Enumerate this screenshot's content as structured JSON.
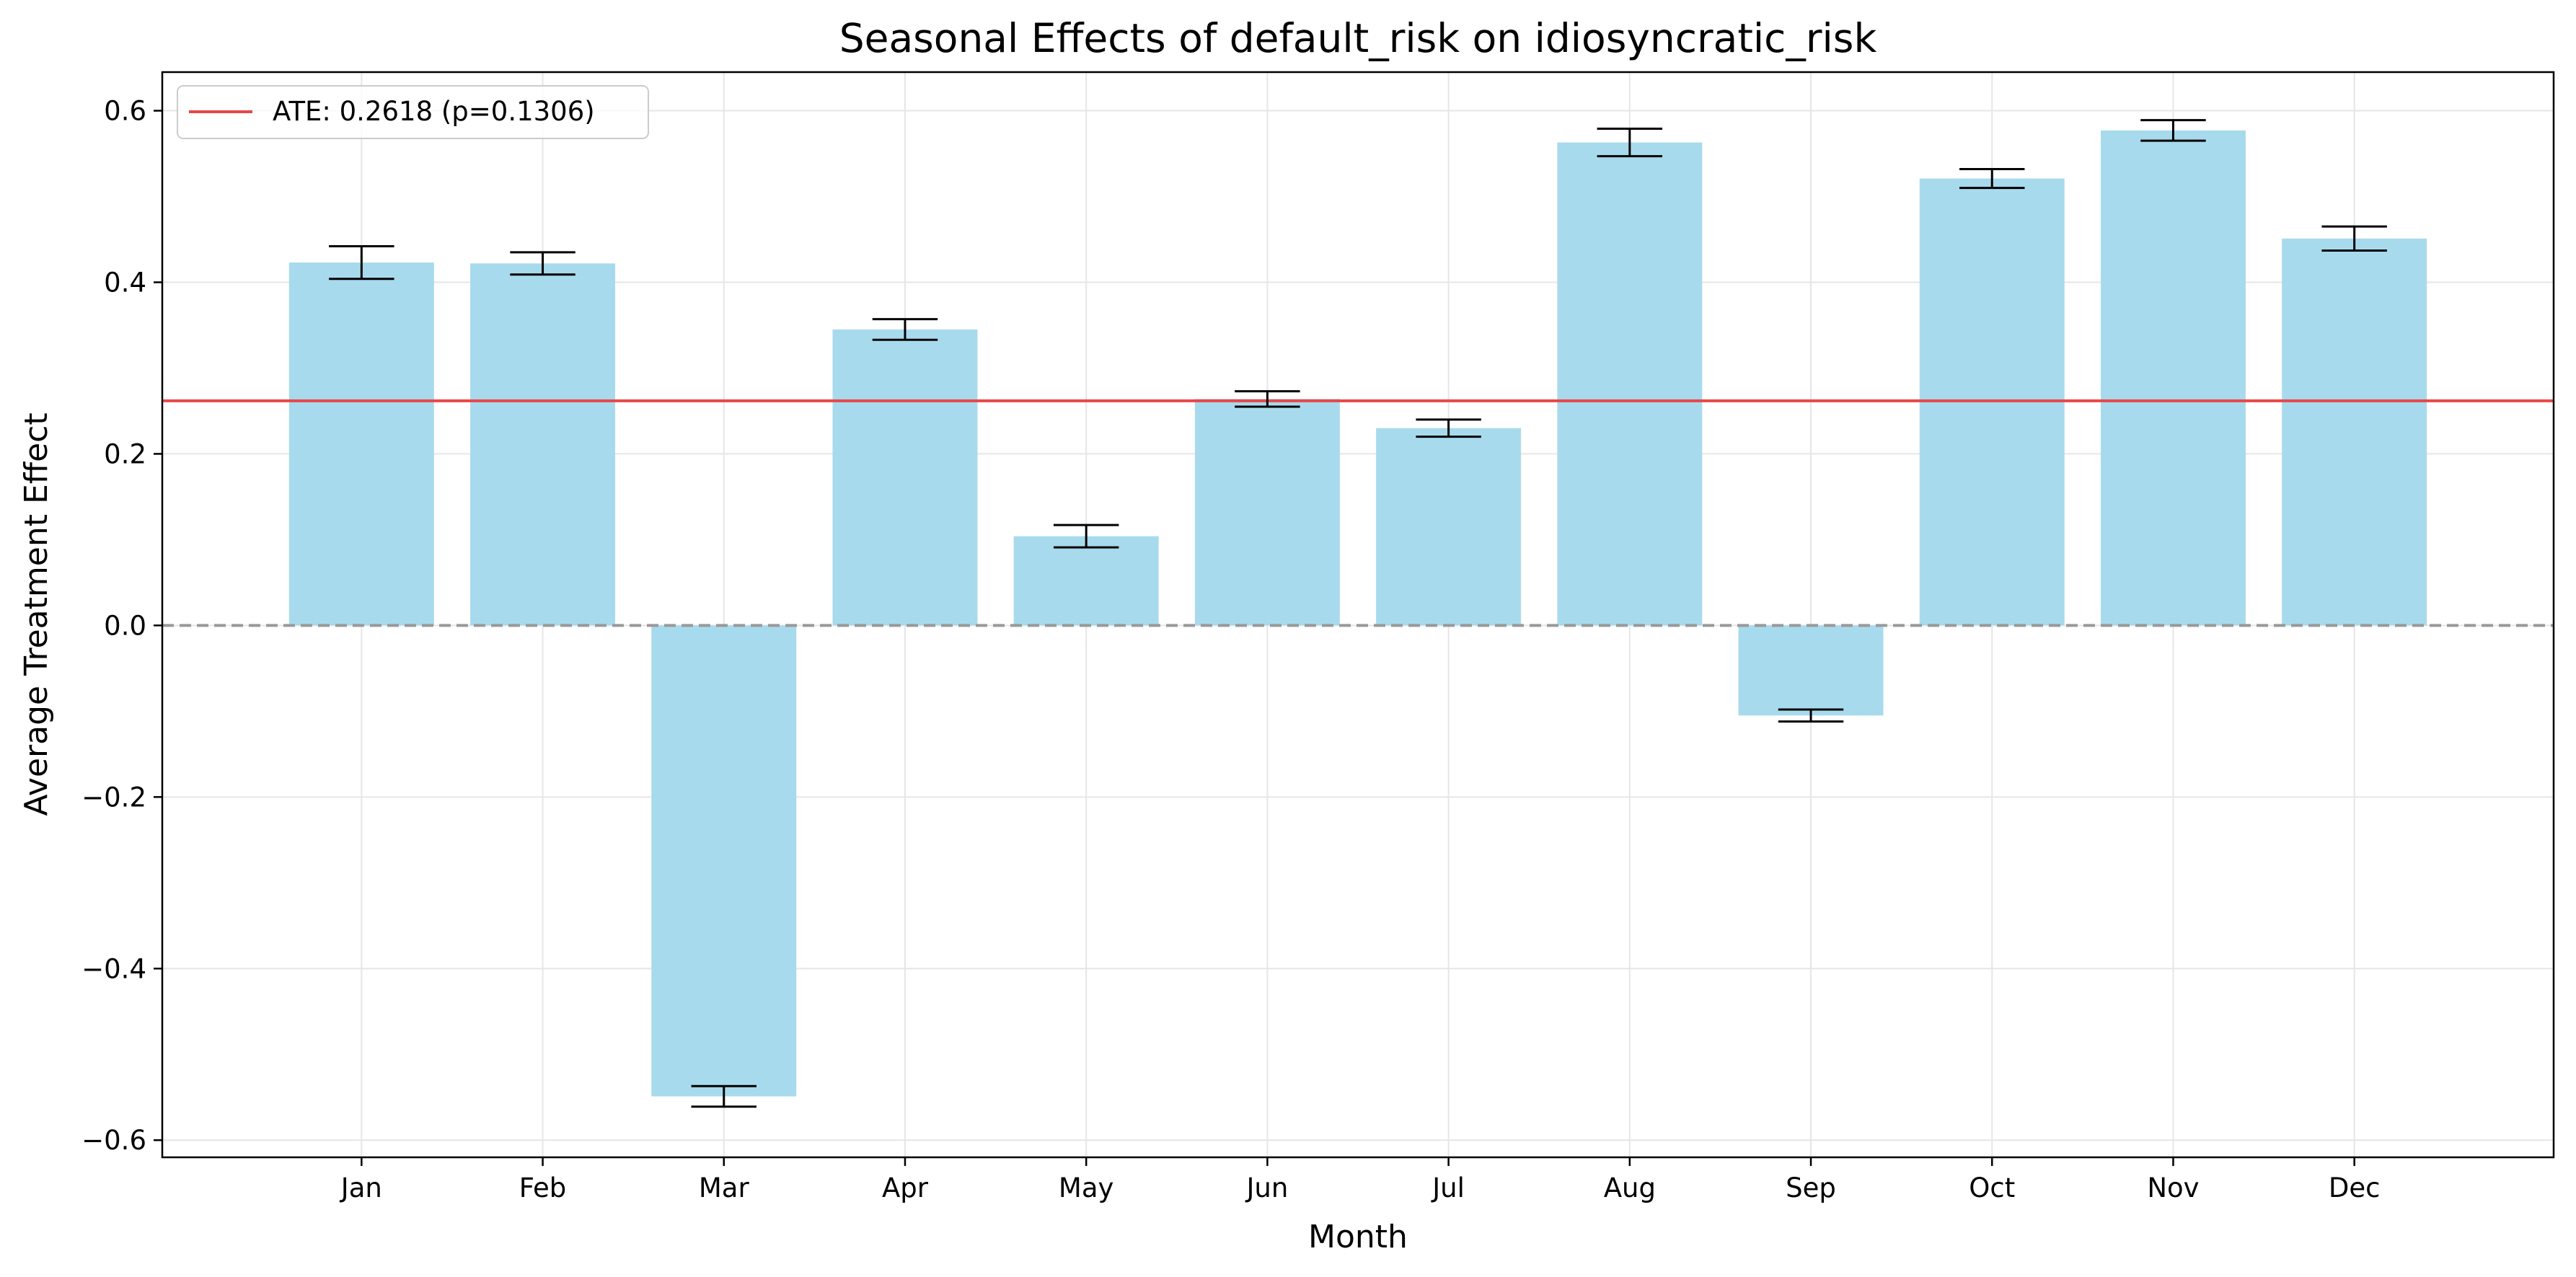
{
  "chart_data": {
    "type": "bar",
    "title": "Seasonal Effects of default_risk on idiosyncratic_risk",
    "xlabel": "Month",
    "ylabel": "Average Treatment Effect",
    "categories": [
      "Jan",
      "Feb",
      "Mar",
      "Apr",
      "May",
      "Jun",
      "Jul",
      "Aug",
      "Sep",
      "Oct",
      "Nov",
      "Dec"
    ],
    "values": [
      0.423,
      0.422,
      -0.549,
      0.345,
      0.104,
      0.264,
      0.23,
      0.563,
      -0.105,
      0.521,
      0.577,
      0.451
    ],
    "errors": [
      0.019,
      0.013,
      0.012,
      0.012,
      0.013,
      0.009,
      0.01,
      0.016,
      0.007,
      0.011,
      0.012,
      0.014
    ],
    "ylim": [
      -0.62,
      0.645
    ],
    "yticks": [
      -0.6,
      -0.4,
      -0.2,
      0.0,
      0.2,
      0.4,
      0.6
    ],
    "ytick_labels": [
      "−0.6",
      "−0.4",
      "−0.2",
      "0.0",
      "0.2",
      "0.4",
      "0.6"
    ],
    "reference_lines": [
      {
        "label": "ATE: 0.2618 (p=0.1306)",
        "value": 0.2618,
        "color": "#e8474a",
        "style": "solid"
      },
      {
        "value": 0.0,
        "color": "#999999",
        "style": "dashed"
      }
    ],
    "legend": {
      "position": "top-left",
      "entries": [
        "ATE: 0.2618 (p=0.1306)"
      ]
    },
    "grid": true,
    "colors": {
      "bar": "#a8daed",
      "errorbar": "#000000",
      "ate_line": "#e8474a",
      "zero_line": "#999999",
      "grid": "#e6e6e6"
    }
  }
}
